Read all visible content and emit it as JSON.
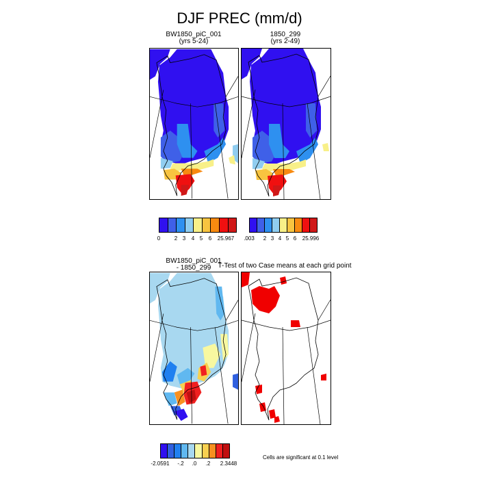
{
  "figure": {
    "title": "DJF PREC (mm/d)",
    "panels": {
      "case1": {
        "title_line1": "BW1850_piC_001",
        "title_line2": "(yrs 5-24)"
      },
      "case2": {
        "title_line1": "1850_299",
        "title_line2": "(yrs 2-49)"
      },
      "diff": {
        "title_line1": "BW1850_piC_001",
        "title_line2": "- 1850_299"
      },
      "ttest": {
        "title": "T-Test of two Case means at each grid point"
      }
    },
    "colorbars": {
      "case1": {
        "colors": [
          "#3010f0",
          "#3f60e8",
          "#2e90f0",
          "#90cdf0",
          "#f8f088",
          "#f8c440",
          "#f88a10",
          "#f01010",
          "#d01818"
        ],
        "labels": [
          "0",
          "2",
          "3",
          "4",
          "5",
          "6",
          "25.967"
        ]
      },
      "case2": {
        "colors": [
          "#3010f0",
          "#3f60e8",
          "#2e90f0",
          "#90cdf0",
          "#f8f088",
          "#f8c440",
          "#f88a10",
          "#f01010",
          "#d01818"
        ],
        "labels": [
          ".003",
          "2",
          "3",
          "4",
          "5",
          "6",
          "25.996"
        ]
      },
      "diff": {
        "colors": [
          "#3010f0",
          "#3060e0",
          "#2080f0",
          "#60b8f0",
          "#a8d8f0",
          "#f8f8a0",
          "#f8d050",
          "#f89020",
          "#f02020",
          "#c01010"
        ],
        "labels": [
          "-2.0591",
          "-.2",
          ".0",
          ".2",
          "2.3448"
        ]
      }
    },
    "significance_note": "Cells are significant at 0.1 level",
    "colors": {
      "significant": "#f00000",
      "outline": "#000000"
    }
  }
}
